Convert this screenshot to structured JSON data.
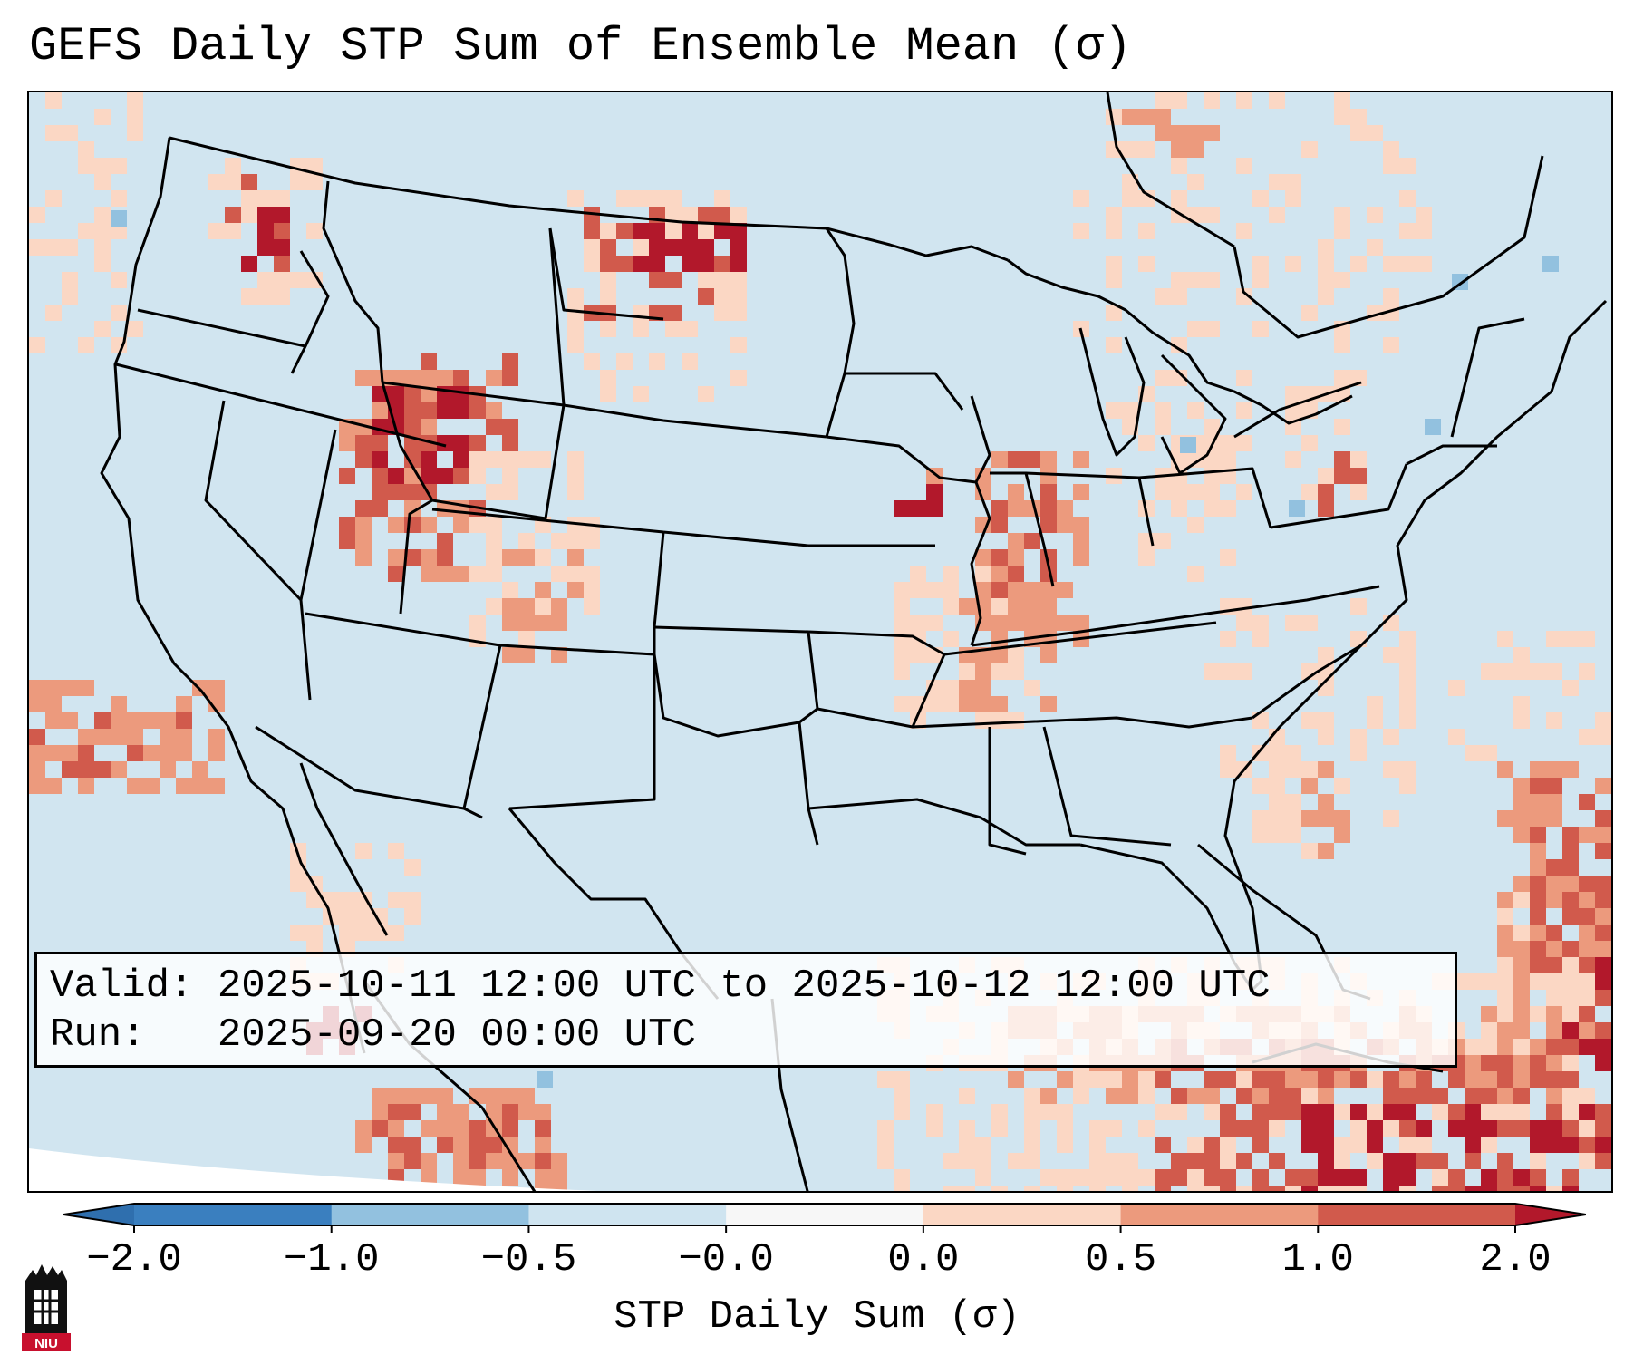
{
  "title": "GEFS Daily STP Sum of Ensemble Mean (σ)",
  "info": {
    "valid_line": "Valid: 2025-10-11 12:00 UTC to 2025-10-12 12:00 UTC",
    "run_line": "Run:   2025-09-20 00:00 UTC"
  },
  "colorbar": {
    "label": "STP Daily Sum (σ)",
    "ticks": [
      "−2.0",
      "−1.0",
      "−0.5",
      "−0.0",
      "0.0",
      "0.5",
      "1.0",
      "2.0"
    ],
    "bin_colors": [
      "#3a7fbf",
      "#92c1df",
      "#cfe4f0",
      "#f7f7f7",
      "#fbd7c4",
      "#ec9a7d",
      "#d15a4c"
    ],
    "under_color": "#2f6fae",
    "over_color": "#b2182b"
  },
  "map": {
    "background_color": "#d1e5f0",
    "outside_color": "#ffffff",
    "line_color": "#000000",
    "value_colors": {
      "1": "#fbd7c4",
      "2": "#ec9a7d",
      "3": "#d15a4c",
      "4": "#b2182b",
      "-1": "#92c1df"
    }
  },
  "logo": {
    "text": "NIU",
    "banner_color": "#c8102e"
  }
}
